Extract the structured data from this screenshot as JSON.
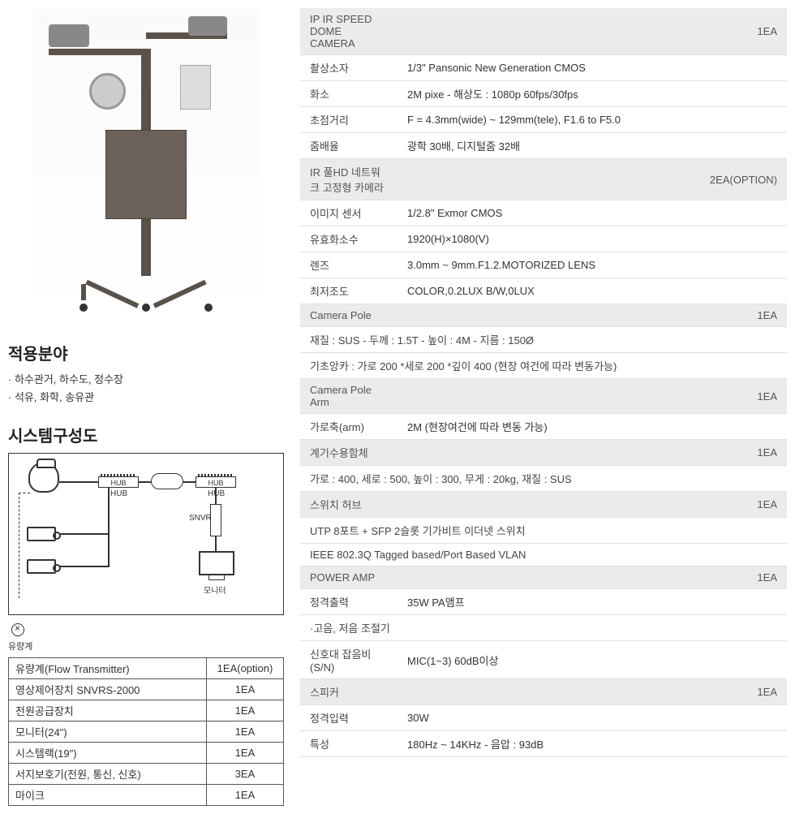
{
  "left": {
    "app_title": "적용분야",
    "app_items": [
      "하수관거, 하수도, 정수장",
      "석유, 화학, 송유관"
    ],
    "sys_title": "시스템구성도",
    "diagram": {
      "hub": "HUB",
      "snvr": "SNVR",
      "monitor": "모니터",
      "flow": "유량계"
    },
    "bottom_table": [
      {
        "label": "유량계(Flow Transmitter)",
        "qty": "1EA(option)"
      },
      {
        "label": "영상제어장치 SNVRS-2000",
        "qty": "1EA"
      },
      {
        "label": "전원공급장치",
        "qty": "1EA"
      },
      {
        "label": "모니터(24\")",
        "qty": "1EA"
      },
      {
        "label": "시스템랙(19\")",
        "qty": "1EA"
      },
      {
        "label": "서지보호기(전원, 통신, 신호)",
        "qty": "3EA"
      },
      {
        "label": "마이크",
        "qty": "1EA"
      }
    ]
  },
  "right": {
    "sections": [
      {
        "header": {
          "title": "IP IR SPEED DOME CAMERA",
          "qty": "1EA"
        },
        "rows": [
          {
            "k": "촬상소자",
            "v": "1/3\" Pansonic New Generation CMOS"
          },
          {
            "k": "화소",
            "v": "2M pixe - 해상도 : 1080p 60fps/30fps"
          },
          {
            "k": "초점거리",
            "v": "F = 4.3mm(wide) ~ 129mm(tele), F1.6 to F5.0"
          },
          {
            "k": "줌배율",
            "v": "광학 30배, 디지털줌 32배"
          }
        ]
      },
      {
        "header": {
          "title": "IR 풀HD 네트워크 고정형 카메라",
          "qty": "2EA(OPTION)"
        },
        "rows": [
          {
            "k": "이미지 센서",
            "v": "1/2.8\" Exmor CMOS"
          },
          {
            "k": "유효화소수",
            "v": "1920(H)×1080(V)"
          },
          {
            "k": "렌즈",
            "v": "3.0mm ~ 9mm.F1.2.MOTORIZED LENS"
          },
          {
            "k": "최저조도",
            "v": "COLOR,0.2LUX B/W,0LUX"
          }
        ]
      },
      {
        "header": {
          "title": "Camera Pole",
          "qty": "1EA"
        },
        "full_rows": [
          "재질 : SUS - 두께 : 1.5T - 높이 : 4M - 지름 : 150Ø",
          "기초앙카 : 가로 200 *세로 200 *깊이 400 (현장 여건에 따라 변동가능)"
        ]
      },
      {
        "header": {
          "title": "Camera Pole Arm",
          "qty": "1EA"
        },
        "rows": [
          {
            "k": "가로축(arm)",
            "v": "2M (현장여건에 따라 변동 가능)"
          }
        ]
      },
      {
        "header": {
          "title": "계기수용함체",
          "qty": "1EA"
        },
        "full_rows": [
          "가로 : 400, 세로 : 500, 높이 : 300, 무게 : 20kg, 재질 : SUS"
        ]
      },
      {
        "header": {
          "title": "스위치 허브",
          "qty": "1EA"
        },
        "full_rows": [
          "UTP 8포트 + SFP 2슬롯 기가비트 이더넷 스위치",
          "IEEE 802.3Q Tagged based/Port Based VLAN"
        ]
      },
      {
        "header": {
          "title": "POWER AMP",
          "qty": "1EA"
        },
        "rows": [
          {
            "k": "정격출력",
            "v": "35W PA앰프"
          }
        ],
        "full_rows": [
          "·고음, 저음 조절기"
        ],
        "rows2": [
          {
            "k": "신호대 잡음비(S/N)",
            "v": "MIC(1~3) 60dB이상"
          }
        ]
      },
      {
        "header": {
          "title": "스피커",
          "qty": "1EA"
        },
        "rows": [
          {
            "k": "정격입력",
            "v": "30W"
          },
          {
            "k": "특성",
            "v": "180Hz ~ 14KHz - 음압 : 93dB"
          }
        ]
      }
    ]
  },
  "colors": {
    "header_bg": "#ebebeb",
    "border": "#e0e0e0",
    "text": "#333333"
  }
}
